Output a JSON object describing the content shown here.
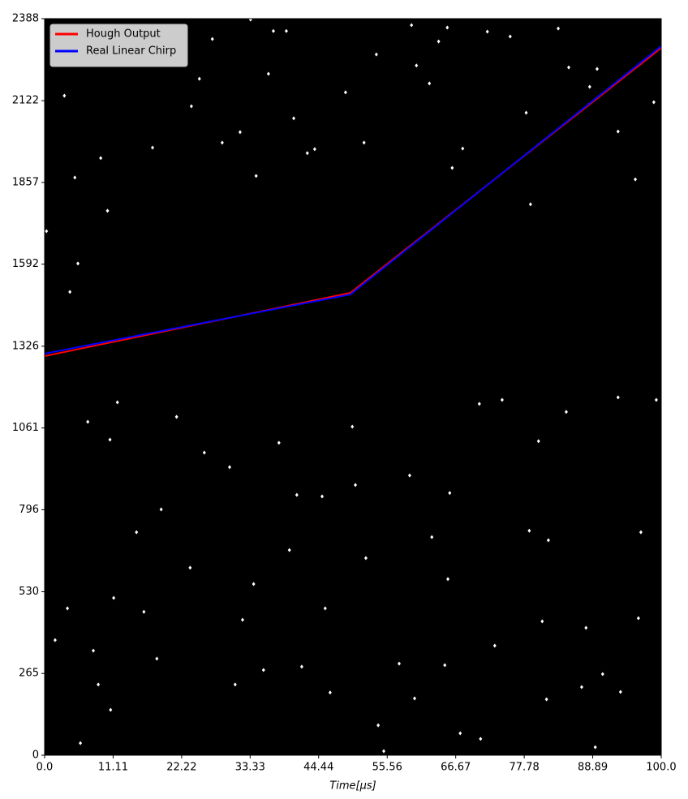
{
  "chart_data": {
    "type": "line",
    "xlabel": "Time[μs]",
    "xlim": [
      0,
      100
    ],
    "ylim": [
      0,
      2388
    ],
    "xticks": [
      {
        "value": 0,
        "label": "0.0"
      },
      11.11,
      22.22,
      33.33,
      44.44,
      55.56,
      66.67,
      77.78,
      88.89,
      {
        "value": 100,
        "label": "100.0"
      }
    ],
    "yticks": [
      0,
      265,
      530,
      796,
      1061,
      1326,
      1592,
      1857,
      2122,
      2388
    ],
    "background": "#000000",
    "legend": "upper left",
    "series": [
      {
        "name": "Hough Output",
        "color": "#ff0000",
        "x": [
          0,
          49.6,
          100
        ],
        "values": [
          1294,
          1499,
          2293
        ]
      },
      {
        "name": "Real Linear Chirp",
        "color": "#0000ff",
        "x": [
          0,
          49.6,
          100
        ],
        "values": [
          1302,
          1494,
          2299
        ]
      }
    ],
    "points": {
      "color": "#ffffff",
      "x": [
        0.3,
        4.1,
        5.4,
        3.2,
        4.9,
        9.1,
        10.2,
        14.1,
        17.5,
        19.5,
        23.8,
        25.1,
        27.2,
        28.8,
        31.7,
        33.4,
        34.3,
        36.3,
        37.1,
        39.2,
        40.4,
        42.6,
        43.8,
        48.8,
        51.8,
        53.8,
        59.5,
        60.3,
        62.4,
        63.9,
        65.3,
        66.1,
        67.8,
        71.8,
        75.5,
        78.1,
        78.8,
        83.3,
        85.0,
        88.4,
        89.6,
        93.0,
        95.8,
        98.8,
        7.0,
        10.6,
        11.8,
        21.4,
        25.9,
        30.0,
        38.0,
        40.9,
        45.0,
        49.9,
        50.4,
        59.2,
        65.7,
        70.5,
        74.2,
        80.1,
        84.6,
        93.0,
        99.2,
        14.9,
        18.9,
        23.6,
        33.9,
        39.7,
        52.1,
        62.8,
        65.4,
        78.6,
        81.7,
        96.7,
        3.7,
        11.2,
        16.1,
        32.1,
        45.5,
        57.5,
        64.9,
        73.0,
        80.7,
        87.8,
        96.3,
        1.7,
        7.9,
        8.7,
        10.7,
        18.2,
        30.9,
        35.5,
        41.7,
        46.3,
        54.1,
        60.0,
        70.7,
        81.4,
        87.1,
        90.5,
        93.4,
        5.8,
        55.0,
        89.3,
        67.4
      ],
      "y": [
        1699,
        1502,
        1594,
        2138,
        1873,
        1936,
        1765,
        2238,
        1970,
        2354,
        2104,
        2193,
        2322,
        1986,
        2020,
        2385,
        1878,
        2209,
        2348,
        2348,
        2065,
        1952,
        1965,
        2149,
        1986,
        2272,
        2367,
        2236,
        2178,
        2314,
        2359,
        1904,
        1967,
        2346,
        2330,
        2083,
        1786,
        2356,
        2230,
        2167,
        2225,
        2022,
        1867,
        2117,
        1081,
        1023,
        1144,
        1097,
        981,
        934,
        1013,
        844,
        839,
        1065,
        876,
        907,
        850,
        1139,
        1152,
        1018,
        1113,
        1160,
        1152,
        723,
        797,
        608,
        555,
        665,
        639,
        707,
        571,
        728,
        697,
        723,
        476,
        510,
        465,
        439,
        476,
        297,
        292,
        355,
        434,
        413,
        444,
        373,
        339,
        229,
        147,
        313,
        229,
        276,
        287,
        203,
        97,
        184,
        53,
        181,
        221,
        263,
        205,
        39,
        13,
        26,
        71
      ]
    }
  }
}
